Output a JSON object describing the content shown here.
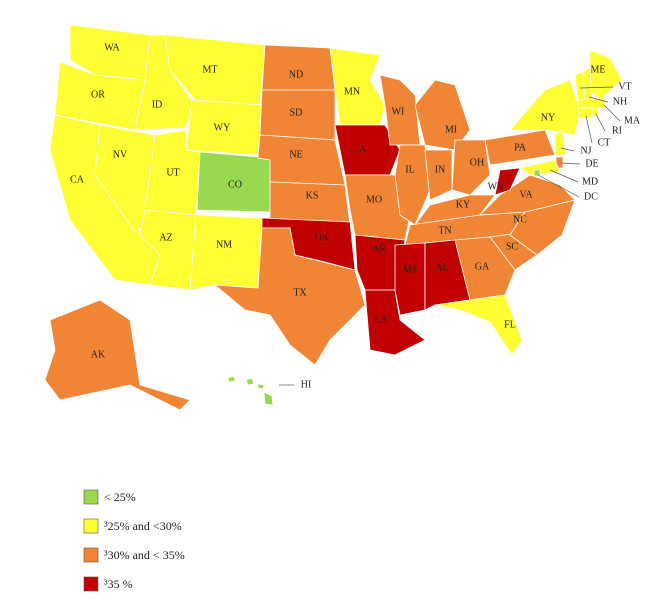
{
  "states": [
    {
      "abbr": "WA",
      "class": 1
    },
    {
      "abbr": "OR",
      "class": 1
    },
    {
      "abbr": "CA",
      "class": 1
    },
    {
      "abbr": "NV",
      "class": 1
    },
    {
      "abbr": "ID",
      "class": 1
    },
    {
      "abbr": "MT",
      "class": 1
    },
    {
      "abbr": "WY",
      "class": 1
    },
    {
      "abbr": "UT",
      "class": 1
    },
    {
      "abbr": "CO",
      "class": 0
    },
    {
      "abbr": "AZ",
      "class": 1
    },
    {
      "abbr": "NM",
      "class": 1
    },
    {
      "abbr": "ND",
      "class": 2
    },
    {
      "abbr": "SD",
      "class": 2
    },
    {
      "abbr": "NE",
      "class": 2
    },
    {
      "abbr": "KS",
      "class": 2
    },
    {
      "abbr": "OK",
      "class": 3
    },
    {
      "abbr": "TX",
      "class": 2
    },
    {
      "abbr": "MN",
      "class": 1
    },
    {
      "abbr": "IA",
      "class": 3
    },
    {
      "abbr": "MO",
      "class": 2
    },
    {
      "abbr": "AR",
      "class": 3
    },
    {
      "abbr": "LA",
      "class": 3
    },
    {
      "abbr": "WI",
      "class": 2
    },
    {
      "abbr": "IL",
      "class": 2
    },
    {
      "abbr": "MI",
      "class": 2
    },
    {
      "abbr": "IN",
      "class": 2
    },
    {
      "abbr": "OH",
      "class": 2
    },
    {
      "abbr": "KY",
      "class": 2
    },
    {
      "abbr": "TN",
      "class": 2
    },
    {
      "abbr": "MS",
      "class": 3
    },
    {
      "abbr": "AL",
      "class": 3
    },
    {
      "abbr": "GA",
      "class": 2
    },
    {
      "abbr": "FL",
      "class": 1
    },
    {
      "abbr": "SC",
      "class": 2
    },
    {
      "abbr": "NC",
      "class": 2
    },
    {
      "abbr": "VA",
      "class": 2
    },
    {
      "abbr": "WV",
      "class": 3
    },
    {
      "abbr": "PA",
      "class": 2
    },
    {
      "abbr": "NY",
      "class": 1
    },
    {
      "abbr": "ME",
      "class": 1
    },
    {
      "abbr": "VT",
      "class": 1
    },
    {
      "abbr": "NH",
      "class": 1
    },
    {
      "abbr": "MA",
      "class": 1
    },
    {
      "abbr": "CT",
      "class": 1
    },
    {
      "abbr": "RI",
      "class": 1
    },
    {
      "abbr": "NJ",
      "class": 1
    },
    {
      "abbr": "DE",
      "class": 2
    },
    {
      "abbr": "MD",
      "class": 1
    },
    {
      "abbr": "DC",
      "class": 0
    },
    {
      "abbr": "AK",
      "class": 2
    },
    {
      "abbr": "HI",
      "class": 0
    }
  ],
  "legend": [
    {
      "label": "< 25%",
      "color": "#99d94f"
    },
    {
      "label": "³25%  and <30%",
      "color": "#ffff33"
    },
    {
      "label": "³30%  and < 35%",
      "color": "#f08535"
    },
    {
      "label": "³35 %",
      "color": "#c00000"
    }
  ]
}
